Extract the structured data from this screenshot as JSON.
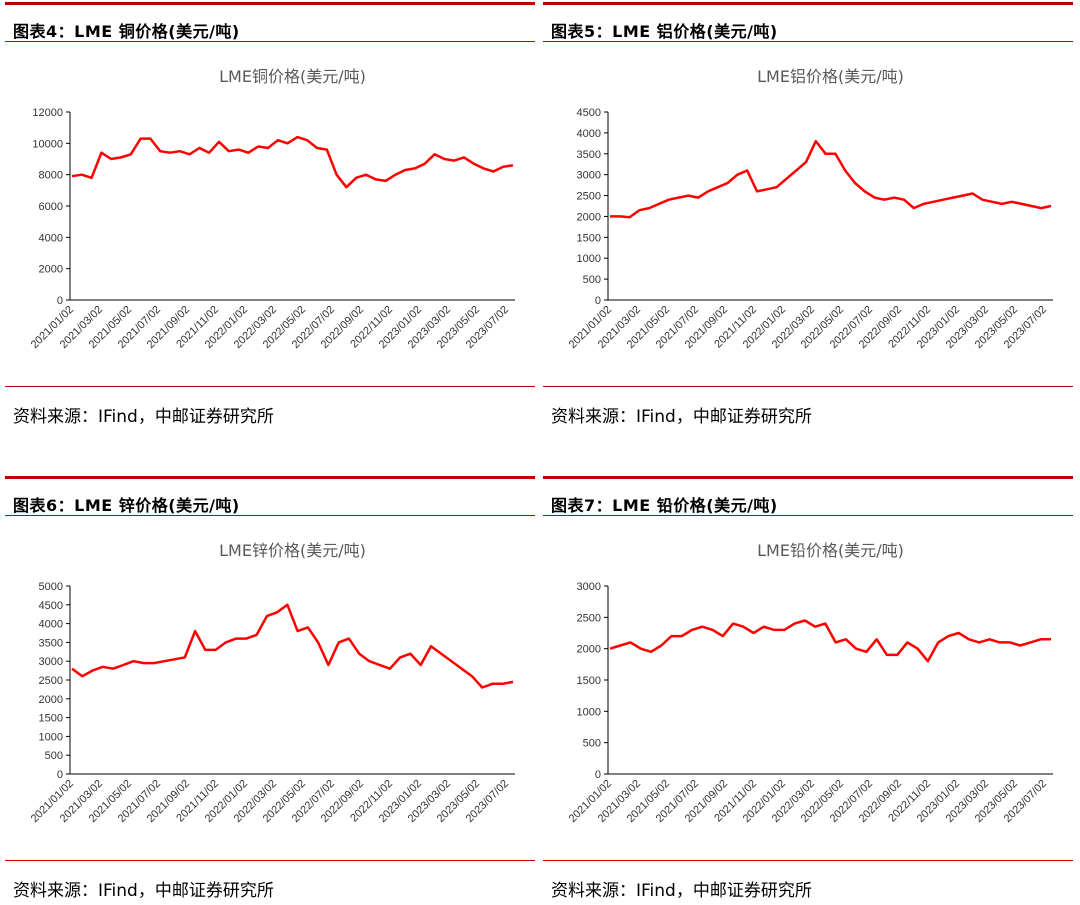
{
  "source_label": "资料来源：IFind，中邮证券研究所",
  "panels": [
    {
      "header": "图表4：LME 铜价格(美元/吨)"
    },
    {
      "header": "图表5：LME 铝价格(美元/吨)"
    },
    {
      "header": "图表6：LME 锌价格(美元/吨)"
    },
    {
      "header": "图表7：LME 铅价格(美元/吨)"
    }
  ],
  "chart_data": [
    {
      "type": "line",
      "title": "LME铜价格(美元/吨)",
      "color": "#ff0000",
      "ylim": [
        0,
        12000
      ],
      "yticks": [
        0,
        2000,
        4000,
        6000,
        8000,
        10000,
        12000
      ],
      "xticks": [
        "2021/01/02",
        "2021/03/02",
        "2021/05/02",
        "2021/07/02",
        "2021/09/02",
        "2021/11/02",
        "2022/01/02",
        "2022/03/02",
        "2022/05/02",
        "2022/07/02",
        "2022/09/02",
        "2022/11/02",
        "2023/01/02",
        "2023/03/02",
        "2023/05/02",
        "2023/07/02"
      ],
      "series": [
        {
          "values": [
            7900,
            8000,
            7800,
            9400,
            9000,
            9100,
            9300,
            10300,
            10300,
            9500,
            9400,
            9500,
            9300,
            9700,
            9400,
            10100,
            9500,
            9600,
            9400,
            9800,
            9700,
            10200,
            10000,
            10400,
            10200,
            9700,
            9600,
            8000,
            7200,
            7800,
            8000,
            7700,
            7600,
            8000,
            8300,
            8400,
            8700,
            9300,
            9000,
            8900,
            9100,
            8700,
            8400,
            8200,
            8500,
            8600
          ]
        }
      ]
    },
    {
      "type": "line",
      "title": "LME铝价格(美元/吨)",
      "color": "#ff0000",
      "ylim": [
        0,
        4500
      ],
      "yticks": [
        0,
        500,
        1000,
        1500,
        2000,
        2500,
        3000,
        3500,
        4000,
        4500
      ],
      "xticks": [
        "2021/01/02",
        "2021/03/02",
        "2021/05/02",
        "2021/07/02",
        "2021/09/02",
        "2021/11/02",
        "2022/01/02",
        "2022/03/02",
        "2022/05/02",
        "2022/07/02",
        "2022/09/02",
        "2022/11/02",
        "2023/01/02",
        "2023/03/02",
        "2023/05/02",
        "2023/07/02"
      ],
      "series": [
        {
          "values": [
            2000,
            2000,
            1980,
            2150,
            2200,
            2300,
            2400,
            2450,
            2500,
            2450,
            2600,
            2700,
            2800,
            3000,
            3100,
            2600,
            2650,
            2700,
            2900,
            3100,
            3300,
            3800,
            3500,
            3500,
            3100,
            2800,
            2600,
            2450,
            2400,
            2450,
            2400,
            2200,
            2300,
            2350,
            2400,
            2450,
            2500,
            2550,
            2400,
            2350,
            2300,
            2350,
            2300,
            2250,
            2200,
            2250
          ]
        }
      ]
    },
    {
      "type": "line",
      "title": "LME锌价格(美元/吨)",
      "color": "#ff0000",
      "ylim": [
        0,
        5000
      ],
      "yticks": [
        0,
        500,
        1000,
        1500,
        2000,
        2500,
        3000,
        3500,
        4000,
        4500,
        5000
      ],
      "xticks": [
        "2021/01/02",
        "2021/03/02",
        "2021/05/02",
        "2021/07/02",
        "2021/09/02",
        "2021/11/02",
        "2022/01/02",
        "2022/03/02",
        "2022/05/02",
        "2022/07/02",
        "2022/09/02",
        "2022/11/02",
        "2023/01/02",
        "2023/03/02",
        "2023/05/02",
        "2023/07/02"
      ],
      "series": [
        {
          "values": [
            2800,
            2600,
            2750,
            2850,
            2800,
            2900,
            3000,
            2950,
            2950,
            3000,
            3050,
            3100,
            3800,
            3300,
            3300,
            3500,
            3600,
            3600,
            3700,
            4200,
            4300,
            4500,
            3800,
            3900,
            3500,
            2900,
            3500,
            3600,
            3200,
            3000,
            2900,
            2800,
            3100,
            3200,
            2900,
            3400,
            3200,
            3000,
            2800,
            2600,
            2300,
            2400,
            2400,
            2450
          ]
        }
      ]
    },
    {
      "type": "line",
      "title": "LME铅价格(美元/吨)",
      "color": "#ff0000",
      "ylim": [
        0,
        3000
      ],
      "yticks": [
        0,
        500,
        1000,
        1500,
        2000,
        2500,
        3000
      ],
      "xticks": [
        "2021/01/02",
        "2021/03/02",
        "2021/05/02",
        "2021/07/02",
        "2021/09/02",
        "2021/11/02",
        "2022/01/02",
        "2022/03/02",
        "2022/05/02",
        "2022/07/02",
        "2022/09/02",
        "2022/11/02",
        "2023/01/02",
        "2023/03/02",
        "2023/05/02",
        "2023/07/02"
      ],
      "series": [
        {
          "values": [
            2000,
            2050,
            2100,
            2000,
            1950,
            2050,
            2200,
            2200,
            2300,
            2350,
            2300,
            2200,
            2400,
            2350,
            2250,
            2350,
            2300,
            2300,
            2400,
            2450,
            2350,
            2400,
            2100,
            2150,
            2000,
            1950,
            2150,
            1900,
            1900,
            2100,
            2000,
            1800,
            2100,
            2200,
            2250,
            2150,
            2100,
            2150,
            2100,
            2100,
            2050,
            2100,
            2150,
            2150
          ]
        }
      ]
    }
  ]
}
